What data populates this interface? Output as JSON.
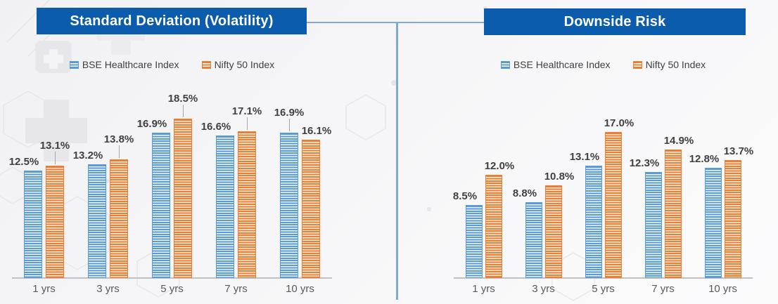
{
  "colors": {
    "banner_blue": "#0b5cad",
    "divider_blue": "#7ea9da",
    "series_blue": "#5B9BD5",
    "series_orange": "#ED7D31",
    "axis_gray": "#c1c1c3",
    "data_label_gray": "#404040",
    "category_label_gray": "#595959"
  },
  "chart_data": [
    {
      "type": "bar",
      "title": "Standard Deviation (Volatility)",
      "categories": [
        "1 yrs",
        "3 yrs",
        "5 yrs",
        "7 yrs",
        "10 yrs"
      ],
      "series": [
        {
          "name": "BSE Healthcare Index",
          "color": "#5B9BD5",
          "values": [
            12.5,
            13.2,
            16.9,
            16.6,
            16.9
          ],
          "label_leader_lines": [
            false,
            false,
            false,
            false,
            true
          ]
        },
        {
          "name": "Nifty 50 Index",
          "color": "#ED7D31",
          "values": [
            13.1,
            13.8,
            18.5,
            17.1,
            16.1
          ],
          "label_leader_lines": [
            true,
            true,
            true,
            true,
            false
          ]
        }
      ],
      "unit": "%",
      "value_label_format": "0.0%",
      "ylim": [
        0,
        20
      ],
      "grid": false,
      "y_axis_visible": false,
      "legend_position": "top"
    },
    {
      "type": "bar",
      "title": "Downside Risk",
      "categories": [
        "1 yrs",
        "3 yrs",
        "5 yrs",
        "7 yrs",
        "10 yrs"
      ],
      "series": [
        {
          "name": "BSE Healthcare Index",
          "color": "#5B9BD5",
          "values": [
            8.5,
            8.8,
            13.1,
            12.3,
            12.8
          ],
          "label_leader_lines": [
            false,
            false,
            false,
            false,
            false
          ]
        },
        {
          "name": "Nifty 50 Index",
          "color": "#ED7D31",
          "values": [
            12.0,
            10.8,
            17.0,
            14.9,
            13.7
          ],
          "label_leader_lines": [
            false,
            false,
            false,
            false,
            false
          ]
        }
      ],
      "unit": "%",
      "value_label_format": "0.0%",
      "ylim": [
        0,
        20
      ],
      "grid": false,
      "y_axis_visible": false,
      "legend_position": "top"
    }
  ]
}
